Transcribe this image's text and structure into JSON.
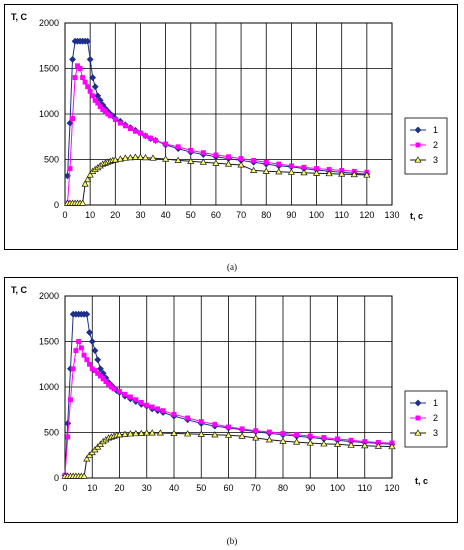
{
  "captions": [
    "(a)",
    "(b)"
  ],
  "chart_data": [
    {
      "type": "line",
      "ylabel": "T, C",
      "xlabel": "t, c",
      "xlim": [
        0,
        130
      ],
      "ylim": [
        0,
        2000
      ],
      "xticks": [
        0,
        10,
        20,
        30,
        40,
        50,
        60,
        70,
        80,
        90,
        100,
        110,
        120,
        130
      ],
      "yticks": [
        0,
        500,
        1000,
        1500,
        2000
      ],
      "grid": true,
      "legend_position": "right",
      "series": [
        {
          "name": "1",
          "color": "#1f2f8a",
          "marker": "diamond",
          "x": [
            1,
            2,
            3,
            4,
            5,
            6,
            7,
            8,
            9,
            10,
            11,
            12,
            13,
            14,
            15,
            16,
            17,
            18,
            19,
            20,
            22,
            24,
            26,
            28,
            30,
            32,
            34,
            36,
            40,
            45,
            50,
            55,
            60,
            65,
            70,
            75,
            80,
            85,
            90,
            95,
            100,
            105,
            110,
            115,
            120
          ],
          "y": [
            320,
            900,
            1600,
            1800,
            1800,
            1800,
            1800,
            1800,
            1800,
            1600,
            1400,
            1300,
            1200,
            1150,
            1100,
            1060,
            1030,
            1000,
            980,
            950,
            920,
            880,
            850,
            820,
            790,
            760,
            730,
            710,
            660,
            620,
            580,
            555,
            530,
            510,
            490,
            470,
            450,
            430,
            420,
            400,
            385,
            370,
            360,
            350,
            340
          ]
        },
        {
          "name": "2",
          "color": "#ff00ff",
          "marker": "square",
          "x": [
            1,
            2,
            3,
            4,
            5,
            6,
            7,
            8,
            9,
            10,
            11,
            12,
            13,
            14,
            15,
            16,
            17,
            18,
            20,
            22,
            24,
            26,
            28,
            30,
            32,
            34,
            36,
            40,
            45,
            50,
            55,
            60,
            65,
            70,
            75,
            80,
            85,
            90,
            95,
            100,
            105,
            110,
            115,
            120
          ],
          "y": [
            20,
            400,
            950,
            1400,
            1530,
            1500,
            1400,
            1350,
            1300,
            1250,
            1200,
            1150,
            1120,
            1080,
            1050,
            1030,
            1000,
            980,
            940,
            900,
            870,
            840,
            810,
            790,
            760,
            735,
            710,
            670,
            640,
            600,
            575,
            550,
            530,
            510,
            490,
            470,
            450,
            430,
            415,
            400,
            390,
            380,
            370,
            360
          ]
        },
        {
          "name": "3",
          "color": "#1a1a1a",
          "fill": "#ffff66",
          "marker": "triangle",
          "x": [
            1,
            2,
            3,
            4,
            5,
            6,
            7,
            8,
            9,
            10,
            11,
            12,
            13,
            14,
            15,
            16,
            17,
            18,
            19,
            20,
            22,
            24,
            26,
            28,
            30,
            32,
            35,
            40,
            45,
            50,
            55,
            60,
            65,
            70,
            75,
            80,
            85,
            90,
            95,
            100,
            105,
            110,
            115,
            120
          ],
          "y": [
            20,
            20,
            20,
            20,
            20,
            20,
            20,
            230,
            280,
            330,
            370,
            390,
            410,
            430,
            450,
            460,
            470,
            480,
            490,
            495,
            505,
            515,
            520,
            525,
            525,
            520,
            515,
            505,
            490,
            480,
            470,
            460,
            450,
            440,
            380,
            370,
            365,
            360,
            355,
            350,
            345,
            340,
            335,
            330
          ]
        }
      ]
    },
    {
      "type": "line",
      "ylabel": "T, C",
      "xlabel": "t, c",
      "xlim": [
        0,
        120
      ],
      "ylim": [
        0,
        2000
      ],
      "xticks": [
        0,
        10,
        20,
        30,
        40,
        50,
        60,
        70,
        80,
        90,
        100,
        110,
        120
      ],
      "yticks": [
        0,
        500,
        1000,
        1500,
        2000
      ],
      "grid": true,
      "legend_position": "right",
      "series": [
        {
          "name": "1",
          "color": "#1f2f8a",
          "marker": "diamond",
          "x": [
            0,
            1,
            2,
            3,
            4,
            5,
            6,
            7,
            8,
            9,
            10,
            11,
            12,
            13,
            14,
            15,
            16,
            17,
            18,
            19,
            20,
            22,
            24,
            26,
            28,
            30,
            32,
            34,
            36,
            40,
            45,
            50,
            55,
            60,
            65,
            70,
            75,
            80,
            85,
            90,
            95,
            100,
            105,
            110,
            115,
            120
          ],
          "y": [
            30,
            600,
            1200,
            1800,
            1800,
            1800,
            1800,
            1800,
            1800,
            1600,
            1500,
            1400,
            1300,
            1200,
            1150,
            1100,
            1050,
            1020,
            990,
            960,
            940,
            900,
            870,
            840,
            810,
            790,
            760,
            740,
            720,
            680,
            640,
            600,
            570,
            550,
            530,
            510,
            490,
            475,
            460,
            445,
            430,
            415,
            400,
            390,
            380,
            370
          ]
        },
        {
          "name": "2",
          "color": "#ff00ff",
          "marker": "square",
          "x": [
            0,
            1,
            2,
            3,
            4,
            5,
            6,
            7,
            8,
            9,
            10,
            11,
            12,
            13,
            14,
            15,
            16,
            17,
            18,
            20,
            22,
            24,
            26,
            28,
            30,
            32,
            34,
            36,
            40,
            45,
            50,
            55,
            60,
            65,
            70,
            75,
            80,
            85,
            90,
            95,
            100,
            105,
            110,
            115,
            120
          ],
          "y": [
            30,
            450,
            860,
            1200,
            1400,
            1500,
            1430,
            1350,
            1300,
            1250,
            1200,
            1180,
            1150,
            1120,
            1090,
            1060,
            1030,
            1000,
            980,
            950,
            920,
            890,
            860,
            830,
            800,
            780,
            760,
            740,
            700,
            660,
            620,
            590,
            560,
            540,
            520,
            505,
            490,
            475,
            460,
            445,
            430,
            415,
            400,
            390,
            385
          ]
        },
        {
          "name": "3",
          "color": "#1a1a1a",
          "fill": "#ffff66",
          "marker": "triangle",
          "x": [
            0,
            1,
            2,
            3,
            4,
            5,
            6,
            7,
            8,
            9,
            10,
            11,
            12,
            13,
            14,
            15,
            16,
            17,
            18,
            19,
            20,
            22,
            24,
            26,
            28,
            30,
            32,
            35,
            40,
            45,
            50,
            55,
            60,
            65,
            70,
            75,
            80,
            85,
            90,
            95,
            100,
            105,
            110,
            115,
            120
          ],
          "y": [
            20,
            20,
            20,
            20,
            20,
            20,
            20,
            20,
            210,
            250,
            280,
            310,
            340,
            370,
            400,
            420,
            440,
            450,
            460,
            470,
            475,
            480,
            485,
            488,
            490,
            495,
            495,
            495,
            490,
            485,
            480,
            475,
            470,
            460,
            440,
            420,
            405,
            395,
            385,
            375,
            370,
            360,
            355,
            350,
            345
          ]
        }
      ]
    }
  ]
}
